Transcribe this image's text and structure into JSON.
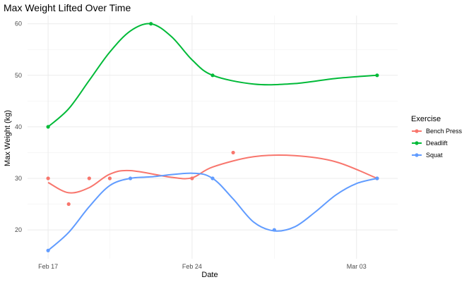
{
  "chart_data": {
    "type": "scatter",
    "title": "Max Weight Lifted Over Time",
    "xlabel": "Date",
    "ylabel": "Max Weight (kg)",
    "x_ticks": [
      {
        "date": "2024-02-17",
        "label": "Feb 17"
      },
      {
        "date": "2024-02-24",
        "label": "Feb 24"
      },
      {
        "date": "2024-03-03",
        "label": "Mar 03"
      }
    ],
    "x_range": [
      "2024-02-16",
      "2024-03-05"
    ],
    "y_ticks": [
      20,
      30,
      40,
      50,
      60
    ],
    "ylim": [
      14.4,
      61.6
    ],
    "grid": true,
    "smoothed_lines": true,
    "legend": {
      "title": "Exercise",
      "position": "right"
    },
    "series": [
      {
        "name": "Bench Press",
        "color": "#F8766D",
        "points": [
          {
            "x": "2024-02-17",
            "y": 30
          },
          {
            "x": "2024-02-18",
            "y": 25
          },
          {
            "x": "2024-02-19",
            "y": 30
          },
          {
            "x": "2024-02-20",
            "y": 30
          },
          {
            "x": "2024-02-24",
            "y": 30
          },
          {
            "x": "2024-02-26",
            "y": 35
          },
          {
            "x": "2024-03-04",
            "y": 30
          }
        ],
        "line": [
          {
            "x": "2024-02-17",
            "y": 29.2
          },
          {
            "x": "2024-02-18",
            "y": 27.2
          },
          {
            "x": "2024-02-19",
            "y": 28.2
          },
          {
            "x": "2024-02-20",
            "y": 30.8
          },
          {
            "x": "2024-02-21",
            "y": 31.5
          },
          {
            "x": "2024-02-23",
            "y": 30.2
          },
          {
            "x": "2024-02-24",
            "y": 30.1
          },
          {
            "x": "2024-02-25",
            "y": 32.2
          },
          {
            "x": "2024-02-27",
            "y": 34.2
          },
          {
            "x": "2024-02-29",
            "y": 34.4
          },
          {
            "x": "2024-03-02",
            "y": 33.2
          },
          {
            "x": "2024-03-04",
            "y": 30
          }
        ]
      },
      {
        "name": "Deadlift",
        "color": "#00BA38",
        "points": [
          {
            "x": "2024-02-17",
            "y": 40
          },
          {
            "x": "2024-02-22",
            "y": 60
          },
          {
            "x": "2024-02-25",
            "y": 50
          },
          {
            "x": "2024-03-04",
            "y": 50
          }
        ],
        "line": [
          {
            "x": "2024-02-17",
            "y": 40
          },
          {
            "x": "2024-02-18",
            "y": 43.5
          },
          {
            "x": "2024-02-19",
            "y": 49
          },
          {
            "x": "2024-02-20",
            "y": 54.5
          },
          {
            "x": "2024-02-21",
            "y": 58.6
          },
          {
            "x": "2024-02-22",
            "y": 60
          },
          {
            "x": "2024-02-23",
            "y": 57.5
          },
          {
            "x": "2024-02-24",
            "y": 53
          },
          {
            "x": "2024-02-25",
            "y": 50
          },
          {
            "x": "2024-02-27",
            "y": 48.3
          },
          {
            "x": "2024-02-29",
            "y": 48.4
          },
          {
            "x": "2024-03-02",
            "y": 49.4
          },
          {
            "x": "2024-03-04",
            "y": 50
          }
        ]
      },
      {
        "name": "Squat",
        "color": "#619CFF",
        "points": [
          {
            "x": "2024-02-17",
            "y": 16
          },
          {
            "x": "2024-02-21",
            "y": 30
          },
          {
            "x": "2024-02-25",
            "y": 30
          },
          {
            "x": "2024-02-28",
            "y": 20
          },
          {
            "x": "2024-03-04",
            "y": 30
          }
        ],
        "line": [
          {
            "x": "2024-02-17",
            "y": 16
          },
          {
            "x": "2024-02-18",
            "y": 19.5
          },
          {
            "x": "2024-02-19",
            "y": 24.5
          },
          {
            "x": "2024-02-20",
            "y": 28.6
          },
          {
            "x": "2024-02-21",
            "y": 30
          },
          {
            "x": "2024-02-22",
            "y": 30.3
          },
          {
            "x": "2024-02-24",
            "y": 31
          },
          {
            "x": "2024-02-25",
            "y": 30
          },
          {
            "x": "2024-02-26",
            "y": 26
          },
          {
            "x": "2024-02-27",
            "y": 21.5
          },
          {
            "x": "2024-02-28",
            "y": 19.8
          },
          {
            "x": "2024-02-29",
            "y": 20.6
          },
          {
            "x": "2024-03-01",
            "y": 23.5
          },
          {
            "x": "2024-03-02",
            "y": 26.8
          },
          {
            "x": "2024-03-03",
            "y": 29
          },
          {
            "x": "2024-03-04",
            "y": 30
          }
        ]
      }
    ]
  }
}
